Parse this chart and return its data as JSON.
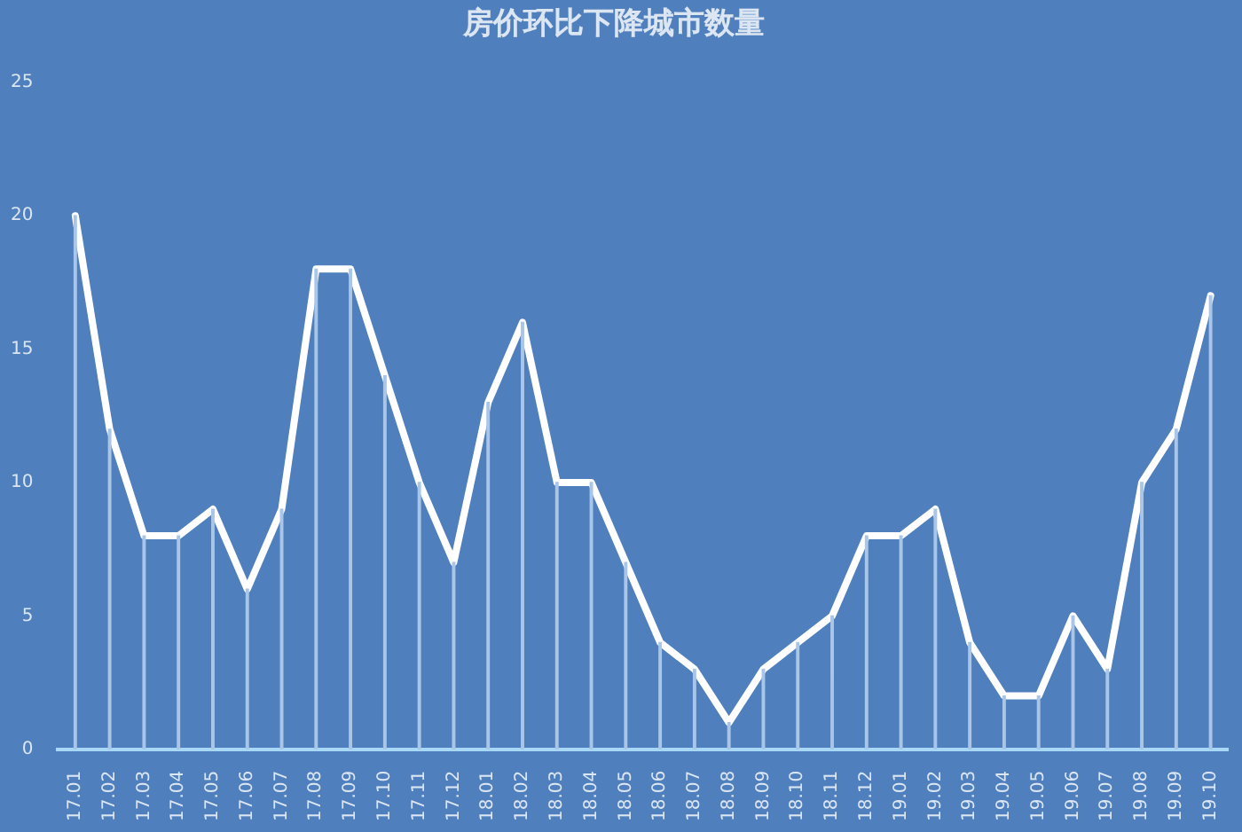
{
  "chart_data": {
    "type": "line",
    "title": "房价环比下降城市数量",
    "categories": [
      "17.01",
      "17.02",
      "17.03",
      "17.04",
      "17.05",
      "17.06",
      "17.07",
      "17.08",
      "17.09",
      "17.10",
      "17.11",
      "17.12",
      "18.01",
      "18.02",
      "18.03",
      "18.04",
      "18.05",
      "18.06",
      "18.07",
      "18.08",
      "18.09",
      "18.10",
      "18.11",
      "18.12",
      "19.01",
      "19.02",
      "19.03",
      "19.04",
      "19.05",
      "19.06",
      "19.07",
      "19.08",
      "19.09",
      "19.10"
    ],
    "series": [
      {
        "type": "bar",
        "color": "#a9c5e8",
        "values": [
          20,
          12,
          8,
          8,
          9,
          6,
          9,
          18,
          18,
          14,
          10,
          7,
          13,
          16,
          10,
          10,
          7,
          4,
          3,
          1,
          3,
          4,
          5,
          8,
          8,
          9,
          4,
          2,
          2,
          5,
          3,
          10,
          12,
          17
        ]
      },
      {
        "color": "#ffffff",
        "values": [
          20,
          12,
          8,
          8,
          9,
          6,
          9,
          18,
          18,
          14,
          10,
          7,
          13,
          16,
          10,
          10,
          7,
          4,
          3,
          1,
          3,
          4,
          5,
          8,
          8,
          9,
          4,
          2,
          2,
          5,
          3,
          10,
          12,
          17
        ]
      }
    ],
    "ylim": [
      0,
      25
    ],
    "yticks": [
      0,
      5,
      10,
      15,
      20,
      25
    ],
    "marker": "none"
  }
}
